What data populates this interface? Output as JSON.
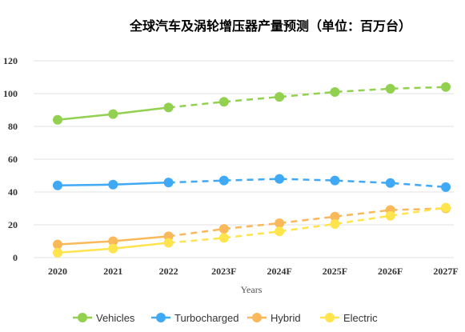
{
  "chart_data": {
    "type": "line",
    "title": "全球汽车及涡轮增压器产量预测（单位：百万台）",
    "xlabel": "Years",
    "ylabel": "",
    "categories": [
      "2020",
      "2021",
      "2022",
      "2023F",
      "2024F",
      "2025F",
      "2026F",
      "2027F"
    ],
    "ylim": [
      0,
      120
    ],
    "yticks": [
      0,
      20,
      40,
      60,
      80,
      100,
      120
    ],
    "grid": true,
    "legend_position": "bottom",
    "solid_until_index": 2,
    "series": [
      {
        "name": "Vehicles",
        "color": "#92d050",
        "values": [
          84,
          87.5,
          91.5,
          95,
          98,
          101,
          103,
          104
        ]
      },
      {
        "name": "Turbocharged",
        "color": "#3fa9f5",
        "values": [
          44,
          44.5,
          45.8,
          47,
          48,
          47,
          45.5,
          43
        ]
      },
      {
        "name": "Hybrid",
        "color": "#f9b85a",
        "values": [
          8,
          10,
          13,
          17.5,
          21,
          25,
          29,
          30
        ]
      },
      {
        "name": "Electric",
        "color": "#ffe44d",
        "values": [
          3,
          5.5,
          9,
          12,
          16,
          20.5,
          25.5,
          30.5
        ]
      }
    ]
  }
}
